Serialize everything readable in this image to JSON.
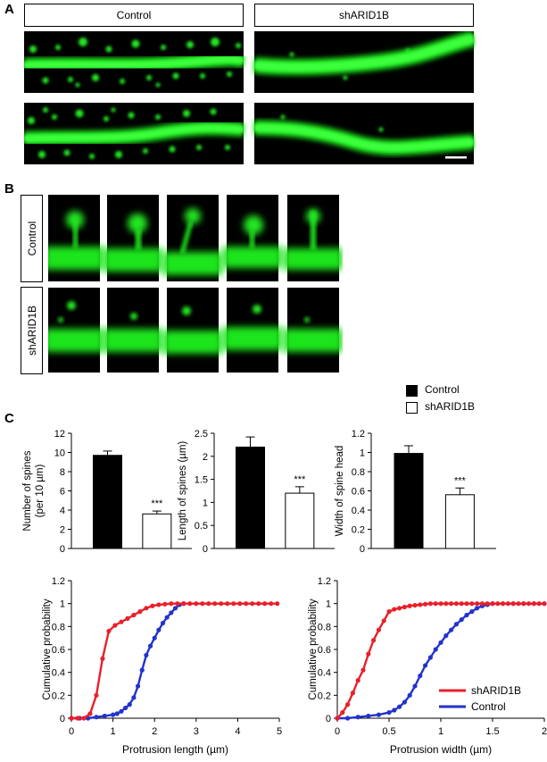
{
  "panels": {
    "a": {
      "letter": "A",
      "headers": [
        "Control",
        "shARID1B"
      ]
    },
    "b": {
      "letter": "B",
      "row_labels": [
        "Control",
        "shARID1B"
      ]
    },
    "c": {
      "letter": "C",
      "legend": [
        "Control",
        "shARID1B"
      ]
    }
  },
  "colors": {
    "fluorescence": "#19e619",
    "control_bar": "#000000",
    "shARID1B_bar": "#ffffff",
    "shARID1B_line": "#e8202a",
    "control_line": "#2233cc"
  },
  "chart_data": [
    {
      "type": "bar",
      "categories": [
        "Control",
        "shARID1B"
      ],
      "values": [
        9.7,
        3.6
      ],
      "errors": [
        0.45,
        0.3
      ],
      "significance": "***",
      "ylabel": "Number of spines (per 10 µm)",
      "ylim": [
        0,
        12
      ],
      "yticks": [
        0,
        2,
        4,
        6,
        8,
        10,
        12
      ]
    },
    {
      "type": "bar",
      "categories": [
        "Control",
        "shARID1B"
      ],
      "values": [
        2.2,
        1.2
      ],
      "errors": [
        0.22,
        0.14
      ],
      "significance": "***",
      "ylabel": "Length of spines (µm)",
      "ylim": [
        0,
        2.5
      ],
      "yticks": [
        "0",
        "0.5",
        "1",
        "1.5",
        "2",
        "2.5"
      ]
    },
    {
      "type": "bar",
      "categories": [
        "Control",
        "shARID1B"
      ],
      "values": [
        0.99,
        0.56
      ],
      "errors": [
        0.08,
        0.07
      ],
      "significance": "***",
      "ylabel": "Width of spine head",
      "ylim": [
        0,
        1.2
      ],
      "yticks": [
        "0",
        "0.2",
        "0.4",
        "0.6",
        "0.8",
        "1",
        "1.2"
      ]
    },
    {
      "type": "line",
      "xlabel": "Protrusion length (µm)",
      "ylabel": "Cumulative probability",
      "xlim": [
        0,
        5
      ],
      "ylim": [
        0,
        1.2
      ],
      "xticks": [
        "0",
        "1",
        "2",
        "3",
        "4",
        "5"
      ],
      "yticks": [
        "0",
        "0.2",
        "0.4",
        "0.6",
        "0.8",
        "1",
        "1.2"
      ],
      "series": [
        {
          "name": "shARID1B",
          "x": [
            0,
            0.15,
            0.3,
            0.45,
            0.6,
            0.75,
            0.9,
            1.05,
            1.2,
            1.35,
            1.5,
            1.65,
            1.8,
            1.95,
            2.1,
            2.25,
            2.4,
            2.55,
            2.7,
            2.85,
            3.0,
            3.15,
            3.3,
            3.45,
            3.6,
            3.75,
            3.9,
            4.05,
            4.2,
            4.35,
            4.5,
            4.65,
            4.8,
            4.95
          ],
          "y": [
            0,
            0,
            0,
            0.04,
            0.2,
            0.52,
            0.76,
            0.81,
            0.84,
            0.87,
            0.9,
            0.93,
            0.96,
            0.98,
            0.99,
            0.995,
            1,
            1,
            1,
            1,
            1,
            1,
            1,
            1,
            1,
            1,
            1,
            1,
            1,
            1,
            1,
            1,
            1,
            1
          ]
        },
        {
          "name": "Control",
          "x": [
            0,
            0.2,
            0.4,
            0.6,
            0.8,
            1.0,
            1.1,
            1.2,
            1.3,
            1.4,
            1.5,
            1.6,
            1.7,
            1.8,
            1.9,
            2.0,
            2.1,
            2.2,
            2.3,
            2.4,
            2.5,
            2.6,
            2.7
          ],
          "y": [
            0,
            0,
            0,
            0.01,
            0.02,
            0.03,
            0.04,
            0.06,
            0.09,
            0.12,
            0.18,
            0.28,
            0.42,
            0.55,
            0.63,
            0.7,
            0.77,
            0.83,
            0.88,
            0.92,
            0.96,
            0.99,
            1
          ]
        }
      ]
    },
    {
      "type": "line",
      "xlabel": "Protrusion width (µm)",
      "ylabel": "Cumulative probability",
      "xlim": [
        0,
        2
      ],
      "ylim": [
        0,
        1.2
      ],
      "xticks": [
        "0",
        "0.5",
        "1",
        "1.5",
        "2"
      ],
      "yticks": [
        "0",
        "0.2",
        "0.4",
        "0.6",
        "0.8",
        "1",
        "1.2"
      ],
      "legend_position": "bottom-right",
      "series": [
        {
          "name": "shARID1B",
          "x": [
            0,
            0.05,
            0.1,
            0.15,
            0.2,
            0.25,
            0.3,
            0.35,
            0.4,
            0.45,
            0.5,
            0.55,
            0.6,
            0.65,
            0.7,
            0.75,
            0.8,
            0.85,
            0.9,
            0.95,
            1.0,
            1.05,
            1.1,
            1.15,
            1.2,
            1.25,
            1.3,
            1.35,
            1.4,
            1.45,
            1.5,
            1.55,
            1.6,
            1.65,
            1.7,
            1.75,
            1.8,
            1.85,
            1.9,
            1.95,
            2.0
          ],
          "y": [
            0,
            0.05,
            0.12,
            0.22,
            0.33,
            0.42,
            0.56,
            0.68,
            0.77,
            0.85,
            0.93,
            0.95,
            0.96,
            0.97,
            0.98,
            0.985,
            0.99,
            0.995,
            1,
            1,
            1,
            1,
            1,
            1,
            1,
            1,
            1,
            1,
            1,
            1,
            1,
            1,
            1,
            1,
            1,
            1,
            1,
            1,
            1,
            1,
            1
          ]
        },
        {
          "name": "Control",
          "x": [
            0,
            0.1,
            0.2,
            0.3,
            0.4,
            0.5,
            0.55,
            0.6,
            0.65,
            0.7,
            0.75,
            0.8,
            0.85,
            0.9,
            0.95,
            1.0,
            1.05,
            1.1,
            1.15,
            1.2,
            1.25,
            1.3,
            1.35,
            1.4,
            1.45,
            1.5,
            1.6,
            1.7,
            1.8,
            1.9,
            2.0
          ],
          "y": [
            0,
            0,
            0.01,
            0.02,
            0.03,
            0.05,
            0.07,
            0.1,
            0.14,
            0.2,
            0.28,
            0.37,
            0.46,
            0.53,
            0.6,
            0.66,
            0.72,
            0.77,
            0.82,
            0.86,
            0.9,
            0.93,
            0.96,
            0.98,
            0.99,
            1,
            1,
            1,
            1,
            1,
            1
          ]
        }
      ]
    }
  ]
}
